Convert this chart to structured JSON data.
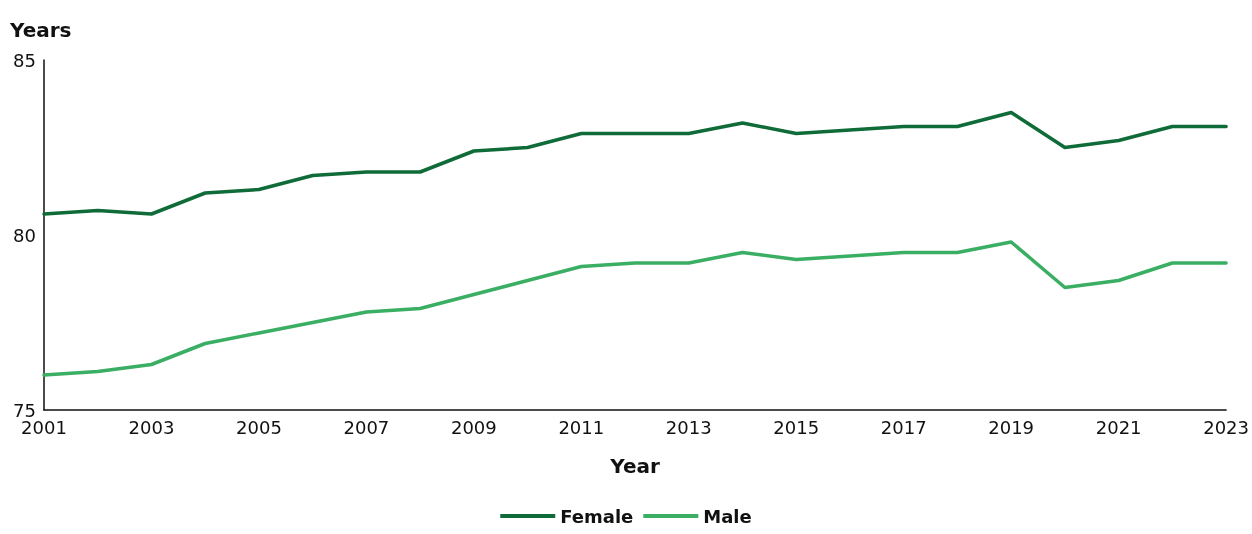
{
  "chart_data": {
    "type": "line",
    "xlabel": "Year",
    "ylabel": "Years",
    "x": [
      2001,
      2002,
      2003,
      2004,
      2005,
      2006,
      2007,
      2008,
      2009,
      2010,
      2011,
      2012,
      2013,
      2014,
      2015,
      2016,
      2017,
      2018,
      2019,
      2020,
      2021,
      2022,
      2023
    ],
    "series": [
      {
        "name": "Female",
        "color": "#0f6b38",
        "values": [
          80.6,
          80.7,
          80.6,
          81.2,
          81.3,
          81.7,
          81.8,
          81.8,
          82.4,
          82.5,
          82.9,
          82.9,
          82.9,
          83.2,
          82.9,
          83.0,
          83.1,
          83.1,
          83.5,
          82.5,
          82.7,
          83.1,
          83.1
        ]
      },
      {
        "name": "Male",
        "color": "#3aae63",
        "values": [
          76.0,
          76.1,
          76.3,
          76.9,
          77.2,
          77.5,
          77.8,
          77.9,
          78.3,
          78.7,
          79.1,
          79.2,
          79.2,
          79.5,
          79.3,
          79.4,
          79.5,
          79.5,
          79.8,
          78.5,
          78.7,
          79.2,
          79.2
        ]
      }
    ],
    "xlim": [
      2001,
      2023
    ],
    "xticks": [
      2001,
      2003,
      2005,
      2007,
      2009,
      2011,
      2013,
      2015,
      2017,
      2019,
      2021,
      2023
    ],
    "ylim": [
      75,
      85
    ],
    "yticks": [
      75,
      80,
      85
    ],
    "grid": false,
    "legend": "bottom",
    "marker": "none",
    "line_style": "solid"
  }
}
